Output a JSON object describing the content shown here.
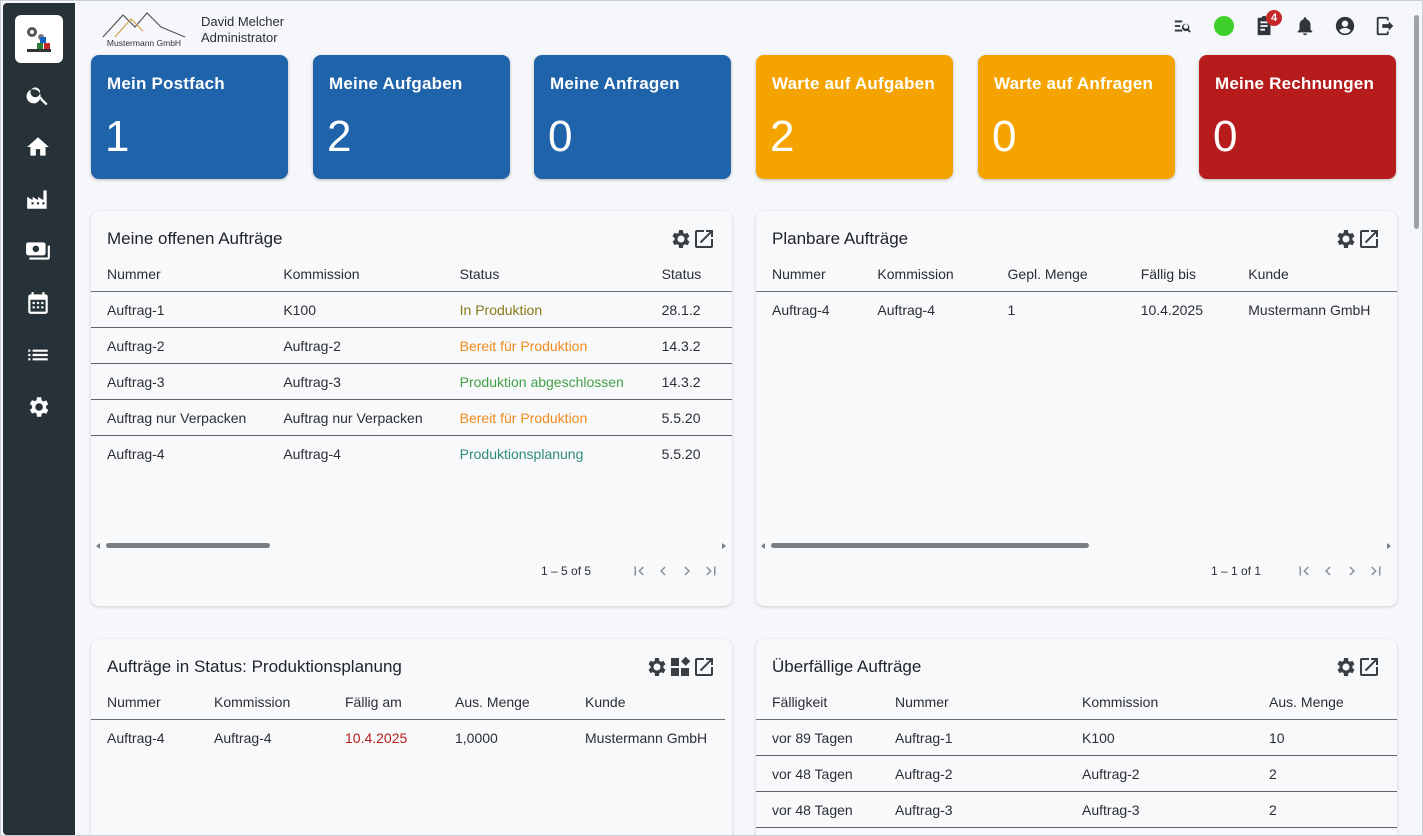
{
  "user": {
    "name": "David Melcher",
    "role": "Administrator"
  },
  "brand": {
    "company": "Mustermann GmbH"
  },
  "sidebar": {
    "items": [
      {
        "icon": "search-icon"
      },
      {
        "icon": "home-icon"
      },
      {
        "icon": "factory-icon"
      },
      {
        "icon": "money-icon"
      },
      {
        "icon": "calendar-icon"
      },
      {
        "icon": "list-icon"
      },
      {
        "icon": "gear-icon"
      }
    ]
  },
  "topbar": {
    "notification_count": "4",
    "status_color": "#3ecf2b"
  },
  "tiles": [
    {
      "title": "Mein Postfach",
      "value": "1",
      "color": "#1f63aa"
    },
    {
      "title": "Meine Aufgaben",
      "value": "2",
      "color": "#1f63aa"
    },
    {
      "title": "Meine Anfragen",
      "value": "0",
      "color": "#1f63aa"
    },
    {
      "title": "Warte auf Aufgaben",
      "value": "2",
      "color": "#f5a300"
    },
    {
      "title": "Warte auf Anfragen",
      "value": "0",
      "color": "#f5a300"
    },
    {
      "title": "Meine Rechnungen",
      "value": "0",
      "color": "#b71c1c"
    }
  ],
  "panels": {
    "open_orders": {
      "title": "Meine offenen Aufträge",
      "columns": [
        "Nummer",
        "Kommission",
        "Status",
        "Status"
      ],
      "rows": [
        {
          "nummer": "Auftrag-1",
          "kommission": "K100",
          "status": "In Produktion",
          "status_color": "#8a7a16",
          "date": "28.1.2"
        },
        {
          "nummer": "Auftrag-2",
          "kommission": "Auftrag-2",
          "status": "Bereit für Produktion",
          "status_color": "#ef8a1c",
          "date": "14.3.2"
        },
        {
          "nummer": "Auftrag-3",
          "kommission": "Auftrag-3",
          "status": "Produktion abgeschlossen",
          "status_color": "#43a047",
          "date": "14.3.2"
        },
        {
          "nummer": "Auftrag nur Verpacken",
          "kommission": "Auftrag nur Verpacken",
          "status": "Bereit für Produktion",
          "status_color": "#ef8a1c",
          "date": "5.5.20"
        },
        {
          "nummer": "Auftrag-4",
          "kommission": "Auftrag-4",
          "status": "Produktionsplanung",
          "status_color": "#2e8b7a",
          "date": "5.5.20"
        }
      ],
      "pager": "1 – 5 of 5"
    },
    "plannable": {
      "title": "Planbare Aufträge",
      "columns": [
        "Nummer",
        "Kommission",
        "Gepl. Menge",
        "Fällig bis",
        "Kunde"
      ],
      "rows": [
        {
          "nummer": "Auftrag-4",
          "kommission": "Auftrag-4",
          "menge": "1",
          "faellig": "10.4.2025",
          "kunde": "Mustermann GmbH"
        }
      ],
      "pager": "1 – 1 of 1"
    },
    "status_planning": {
      "title": "Aufträge in Status: Produktionsplanung",
      "columns": [
        "Nummer",
        "Kommission",
        "Fällig am",
        "Aus. Menge",
        "Kunde"
      ],
      "rows": [
        {
          "nummer": "Auftrag-4",
          "kommission": "Auftrag-4",
          "faellig": "10.4.2025",
          "faellig_color": "#b71c1c",
          "menge": "1,0000",
          "kunde": "Mustermann GmbH"
        }
      ]
    },
    "overdue": {
      "title": "Überfällige Aufträge",
      "columns": [
        "Fälligkeit",
        "Nummer",
        "Kommission",
        "Aus. Menge"
      ],
      "rows": [
        {
          "faelligkeit": "vor 89 Tagen",
          "nummer": "Auftrag-1",
          "kommission": "K100",
          "menge": "10"
        },
        {
          "faelligkeit": "vor 48 Tagen",
          "nummer": "Auftrag-2",
          "kommission": "Auftrag-2",
          "menge": "2"
        },
        {
          "faelligkeit": "vor 48 Tagen",
          "nummer": "Auftrag-3",
          "kommission": "Auftrag-3",
          "menge": "2"
        }
      ]
    }
  }
}
